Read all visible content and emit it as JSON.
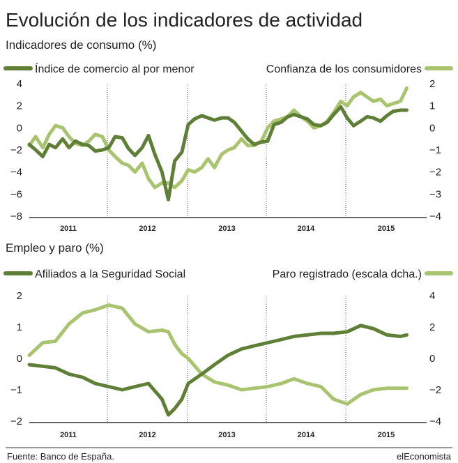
{
  "title": "Evolución de los indicadores de actividad",
  "footer": {
    "source": "Fuente: Banco de España.",
    "brand": "elEconomista"
  },
  "colors": {
    "dark_green": "#5f7f37",
    "light_green": "#a9c36f",
    "rule": "#333333",
    "grid": "#555555"
  },
  "chart_data": [
    {
      "type": "line",
      "title": "Indicadores de consumo (%)",
      "categories": [
        "2011",
        "2012",
        "2013",
        "2014",
        "2015"
      ],
      "ylim_left": [
        -8,
        4
      ],
      "yticks_left": [
        "4",
        "2",
        "0",
        "−2",
        "−4",
        "−6",
        "−8"
      ],
      "ylim_right": [
        -4,
        2
      ],
      "yticks_right": [
        "2",
        "1",
        "0",
        "−1",
        "−2",
        "−3",
        "−4"
      ],
      "grid": "vertical dotted lines between years",
      "legend": "top",
      "series": [
        {
          "name": "Índice de comercio al por menor",
          "axis": "left",
          "color": "#5f7f37",
          "x": [
            2011.0,
            2011.08,
            2011.17,
            2011.25,
            2011.33,
            2011.42,
            2011.5,
            2011.58,
            2011.67,
            2011.75,
            2011.83,
            2011.92,
            2012.0,
            2012.08,
            2012.17,
            2012.25,
            2012.33,
            2012.42,
            2012.5,
            2012.58,
            2012.67,
            2012.75,
            2012.83,
            2012.92,
            2013.0,
            2013.08,
            2013.17,
            2013.25,
            2013.33,
            2013.42,
            2013.5,
            2013.58,
            2013.67,
            2013.75,
            2013.83,
            2013.92,
            2014.0,
            2014.08,
            2014.17,
            2014.25,
            2014.33,
            2014.42,
            2014.5,
            2014.58,
            2014.67,
            2014.75,
            2014.83,
            2014.92,
            2015.0,
            2015.08,
            2015.17,
            2015.25,
            2015.33,
            2015.42,
            2015.5,
            2015.58,
            2015.67,
            2015.75
          ],
          "values": [
            -1.5,
            -2.0,
            -2.6,
            -1.5,
            -1.8,
            -1.0,
            -1.8,
            -1.2,
            -1.5,
            -1.6,
            -2.1,
            -2.0,
            -1.8,
            -0.8,
            -0.9,
            -1.9,
            -2.5,
            -1.8,
            -0.7,
            -2.4,
            -4.0,
            -6.5,
            -3.0,
            -2.2,
            0.3,
            0.8,
            1.1,
            0.9,
            0.7,
            0.9,
            0.9,
            0.5,
            -0.3,
            -1.0,
            -1.5,
            -1.3,
            -1.2,
            0.3,
            0.5,
            1.0,
            1.2,
            1.0,
            0.8,
            0.3,
            0.2,
            0.5,
            1.2,
            1.9,
            0.9,
            0.2,
            0.6,
            1.0,
            0.9,
            0.6,
            1.1,
            1.5,
            1.6,
            1.6
          ]
        },
        {
          "name": "Confianza de los consumidores",
          "axis": "right",
          "color": "#a9c36f",
          "x": [
            2011.0,
            2011.08,
            2011.17,
            2011.25,
            2011.33,
            2011.42,
            2011.5,
            2011.58,
            2011.67,
            2011.75,
            2011.83,
            2011.92,
            2012.0,
            2012.08,
            2012.17,
            2012.25,
            2012.33,
            2012.42,
            2012.5,
            2012.58,
            2012.67,
            2012.75,
            2012.83,
            2012.92,
            2013.0,
            2013.08,
            2013.17,
            2013.25,
            2013.33,
            2013.42,
            2013.5,
            2013.58,
            2013.67,
            2013.75,
            2013.83,
            2013.92,
            2014.0,
            2014.08,
            2014.17,
            2014.25,
            2014.33,
            2014.42,
            2014.5,
            2014.58,
            2014.67,
            2014.75,
            2014.83,
            2014.92,
            2015.0,
            2015.08,
            2015.17,
            2015.25,
            2015.33,
            2015.42,
            2015.5,
            2015.58,
            2015.67,
            2015.75
          ],
          "values": [
            -0.8,
            -0.4,
            -0.9,
            -0.3,
            0.1,
            0.0,
            -0.4,
            -0.7,
            -0.8,
            -0.6,
            -0.3,
            -0.4,
            -1.0,
            -1.3,
            -1.6,
            -1.7,
            -2.0,
            -1.6,
            -2.3,
            -2.7,
            -2.5,
            -2.5,
            -2.7,
            -2.4,
            -1.9,
            -2.0,
            -1.8,
            -1.4,
            -1.8,
            -1.2,
            -1.0,
            -0.9,
            -0.5,
            -0.8,
            -0.8,
            -0.6,
            0.0,
            0.3,
            0.4,
            0.5,
            0.8,
            0.5,
            0.3,
            0.0,
            0.1,
            0.3,
            0.7,
            1.2,
            1.0,
            1.4,
            1.6,
            1.4,
            1.2,
            1.3,
            1.0,
            1.1,
            1.2,
            1.8
          ]
        }
      ]
    },
    {
      "type": "line",
      "title": "Empleo y paro (%)",
      "categories": [
        "2011",
        "2012",
        "2013",
        "2014",
        "2015"
      ],
      "ylim_left": [
        -2,
        2
      ],
      "yticks_left": [
        "2",
        "1",
        "0",
        "−1",
        "−2"
      ],
      "ylim_right": [
        -4,
        4
      ],
      "yticks_right": [
        "4",
        "2",
        "0",
        "−2",
        "−4"
      ],
      "grid": "vertical dotted lines between years",
      "legend": "top",
      "series": [
        {
          "name": "Afiliados a la Seguridad Social",
          "axis": "left",
          "color": "#5f7f37",
          "x": [
            2011.0,
            2011.17,
            2011.33,
            2011.5,
            2011.67,
            2011.83,
            2012.0,
            2012.17,
            2012.33,
            2012.5,
            2012.67,
            2012.75,
            2012.83,
            2012.92,
            2013.0,
            2013.17,
            2013.33,
            2013.5,
            2013.67,
            2013.83,
            2014.0,
            2014.17,
            2014.33,
            2014.5,
            2014.67,
            2014.83,
            2015.0,
            2015.17,
            2015.33,
            2015.5,
            2015.67,
            2015.75
          ],
          "values": [
            -0.2,
            -0.25,
            -0.3,
            -0.5,
            -0.6,
            -0.8,
            -0.9,
            -1.0,
            -0.9,
            -0.8,
            -1.3,
            -1.8,
            -1.6,
            -1.3,
            -0.8,
            -0.5,
            -0.2,
            0.1,
            0.3,
            0.4,
            0.5,
            0.6,
            0.7,
            0.75,
            0.8,
            0.8,
            0.85,
            1.05,
            0.95,
            0.75,
            0.7,
            0.75
          ]
        },
        {
          "name": "Paro registrado (escala dcha.)",
          "axis": "right",
          "color": "#a9c36f",
          "x": [
            2011.0,
            2011.17,
            2011.33,
            2011.5,
            2011.67,
            2011.83,
            2012.0,
            2012.17,
            2012.33,
            2012.5,
            2012.67,
            2012.75,
            2012.83,
            2012.92,
            2013.0,
            2013.17,
            2013.33,
            2013.5,
            2013.67,
            2013.83,
            2014.0,
            2014.17,
            2014.33,
            2014.5,
            2014.67,
            2014.83,
            2015.0,
            2015.17,
            2015.33,
            2015.5,
            2015.67,
            2015.75
          ],
          "values": [
            0.2,
            1.0,
            1.1,
            2.2,
            2.9,
            3.1,
            3.4,
            3.2,
            2.2,
            1.7,
            1.8,
            1.7,
            0.9,
            0.3,
            0.0,
            -1.0,
            -1.5,
            -1.7,
            -2.0,
            -1.9,
            -1.8,
            -1.6,
            -1.3,
            -1.6,
            -1.8,
            -2.6,
            -2.9,
            -2.3,
            -2.0,
            -1.9,
            -1.9,
            -1.9
          ]
        }
      ]
    }
  ]
}
